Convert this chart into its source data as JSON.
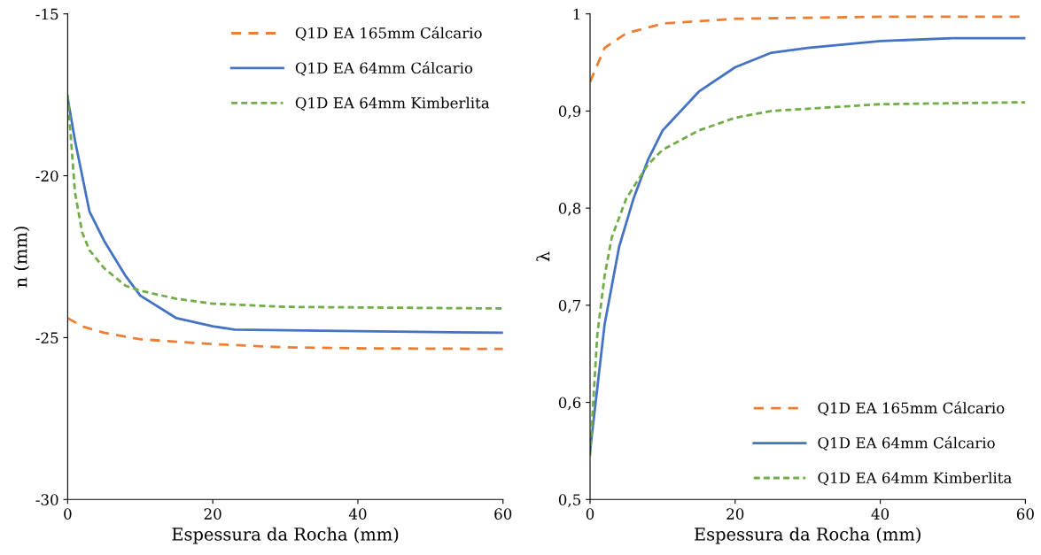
{
  "chart_data": [
    {
      "type": "line",
      "xlabel": "Espessura da Rocha (mm)",
      "ylabel": "n (mm)",
      "xlim": [
        0,
        60
      ],
      "xticks": [
        0,
        20,
        40,
        60
      ],
      "ylim": [
        -30,
        -15
      ],
      "yticks": [
        -30,
        -25,
        -20,
        -15
      ],
      "grid": false,
      "legend": "top right",
      "marker": "none",
      "series": [
        {
          "name": "Q1D EA 165mm Cálcario",
          "color": "#ed7d31",
          "line_style": "dashed",
          "x": [
            0,
            2,
            5,
            10,
            20,
            30,
            40,
            60
          ],
          "values": [
            -24.4,
            -24.65,
            -24.85,
            -25.05,
            -25.2,
            -25.3,
            -25.33,
            -25.35
          ]
        },
        {
          "name": "Q1D EA 64mm Cálcario",
          "color": "#4472c4",
          "line_style": "solid",
          "x": [
            0,
            1,
            3,
            5,
            8,
            10,
            15,
            20,
            23,
            40,
            60
          ],
          "values": [
            -17.6,
            -18.9,
            -21.1,
            -22.0,
            -23.1,
            -23.7,
            -24.4,
            -24.65,
            -24.75,
            -24.8,
            -24.85
          ]
        },
        {
          "name": "Q1D EA 64mm Kimberlita",
          "color": "#70ad47",
          "line_style": "dotted",
          "x": [
            0,
            1,
            2,
            3,
            5,
            8,
            10,
            15,
            20,
            30,
            60
          ],
          "values": [
            -17.5,
            -20.5,
            -21.75,
            -22.3,
            -22.85,
            -23.4,
            -23.55,
            -23.8,
            -23.95,
            -24.05,
            -24.1
          ]
        }
      ]
    },
    {
      "type": "line",
      "xlabel": "Espessura da Rocha (mm)",
      "ylabel": "λ",
      "xlim": [
        0,
        60
      ],
      "xticks": [
        0,
        20,
        40,
        60
      ],
      "ylim": [
        0.5,
        1
      ],
      "yticks": [
        {
          "value": 0.5,
          "label": "0,5"
        },
        {
          "value": 0.6,
          "label": "0,6"
        },
        {
          "value": 0.7,
          "label": "0,7"
        },
        {
          "value": 0.8,
          "label": "0,8"
        },
        {
          "value": 0.9,
          "label": "0,9"
        },
        1
      ],
      "grid": false,
      "legend": "bottom right",
      "marker": "none",
      "series": [
        {
          "name": "Q1D EA 165mm Cálcario",
          "color": "#ed7d31",
          "line_style": "dashed",
          "x": [
            0,
            2,
            5,
            10,
            20,
            40,
            60
          ],
          "values": [
            0.93,
            0.965,
            0.98,
            0.99,
            0.995,
            0.997,
            0.997
          ]
        },
        {
          "name": "Q1D EA 64mm Cálcario",
          "color": "#4472c4",
          "line_style": "solid",
          "x": [
            0,
            2,
            4,
            6,
            8,
            10,
            15,
            20,
            25,
            30,
            40,
            50,
            60
          ],
          "values": [
            0.55,
            0.68,
            0.76,
            0.81,
            0.85,
            0.88,
            0.92,
            0.945,
            0.96,
            0.965,
            0.972,
            0.975,
            0.975
          ]
        },
        {
          "name": "Q1D EA 64mm Kimberlita",
          "color": "#70ad47",
          "line_style": "dotted",
          "x": [
            0,
            1,
            2,
            3,
            5,
            8,
            10,
            15,
            20,
            25,
            40,
            60
          ],
          "values": [
            0.545,
            0.67,
            0.73,
            0.77,
            0.81,
            0.845,
            0.86,
            0.88,
            0.893,
            0.9,
            0.907,
            0.909
          ]
        }
      ]
    }
  ]
}
